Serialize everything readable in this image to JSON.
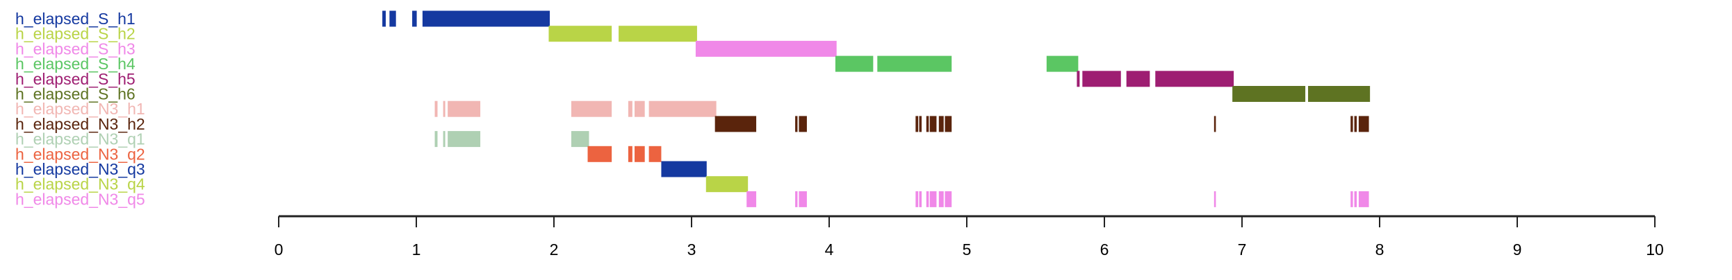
{
  "chart_data": {
    "type": "timeline",
    "title": "",
    "xlabel": "",
    "ylabel": "",
    "xlim": [
      0,
      10
    ],
    "xticks": [
      0,
      1,
      2,
      3,
      4,
      5,
      6,
      7,
      8,
      9,
      10
    ],
    "grid": false,
    "series": [
      {
        "name": "h_elapsed_S_h1",
        "color": "#1539a0",
        "segments": [
          [
            0.753,
            0.778
          ],
          [
            0.805,
            0.852
          ],
          [
            0.97,
            1.003
          ],
          [
            1.045,
            1.97
          ]
        ]
      },
      {
        "name": "h_elapsed_S_h2",
        "color": "#b9d447",
        "segments": [
          [
            1.962,
            2.42
          ],
          [
            2.47,
            3.04
          ]
        ]
      },
      {
        "name": "h_elapsed_S_h3",
        "color": "#f088e8",
        "segments": [
          [
            3.03,
            4.054
          ]
        ]
      },
      {
        "name": "h_elapsed_S_h4",
        "color": "#5bc663",
        "segments": [
          [
            4.045,
            4.32
          ],
          [
            4.35,
            4.89
          ],
          [
            5.58,
            5.81
          ]
        ]
      },
      {
        "name": "h_elapsed_S_h5",
        "color": "#9e1e72",
        "segments": [
          [
            5.8,
            5.82
          ],
          [
            5.84,
            6.12
          ],
          [
            6.16,
            6.33
          ],
          [
            6.37,
            6.94
          ]
        ]
      },
      {
        "name": "h_elapsed_S_h6",
        "color": "#5e7322",
        "segments": [
          [
            6.93,
            7.46
          ],
          [
            7.48,
            7.93
          ]
        ]
      },
      {
        "name": "h_elapsed_N3_h1",
        "color": "#f1b6b3",
        "segments": [
          [
            1.134,
            1.154
          ],
          [
            1.195,
            1.21
          ],
          [
            1.228,
            1.465
          ],
          [
            2.126,
            2.42
          ],
          [
            2.54,
            2.57
          ],
          [
            2.586,
            2.66
          ],
          [
            2.69,
            3.18
          ]
        ]
      },
      {
        "name": "h_elapsed_N3_h2",
        "color": "#5a240c",
        "segments": [
          [
            3.17,
            3.47
          ],
          [
            3.753,
            3.77
          ],
          [
            3.78,
            3.838
          ],
          [
            4.628,
            4.647
          ],
          [
            4.654,
            4.672
          ],
          [
            4.706,
            4.724
          ],
          [
            4.731,
            4.78
          ],
          [
            4.797,
            4.832
          ],
          [
            4.841,
            4.89
          ],
          [
            6.797,
            6.81
          ],
          [
            7.789,
            7.806
          ],
          [
            7.816,
            7.834
          ],
          [
            7.848,
            7.922
          ]
        ]
      },
      {
        "name": "h_elapsed_N3_q1",
        "color": "#afd0b3",
        "segments": [
          [
            1.134,
            1.154
          ],
          [
            1.195,
            1.21
          ],
          [
            1.228,
            1.465
          ],
          [
            2.126,
            2.255
          ]
        ]
      },
      {
        "name": "h_elapsed_N3_q2",
        "color": "#ec6340",
        "segments": [
          [
            2.245,
            2.42
          ],
          [
            2.54,
            2.57
          ],
          [
            2.586,
            2.66
          ],
          [
            2.69,
            2.78
          ]
        ]
      },
      {
        "name": "h_elapsed_N3_q3",
        "color": "#1539a0",
        "segments": [
          [
            2.78,
            3.11
          ]
        ]
      },
      {
        "name": "h_elapsed_N3_q4",
        "color": "#b9d447",
        "segments": [
          [
            3.105,
            3.41
          ]
        ]
      },
      {
        "name": "h_elapsed_N3_q5",
        "color": "#f088e8",
        "segments": [
          [
            3.4,
            3.47
          ],
          [
            3.753,
            3.77
          ],
          [
            3.78,
            3.838
          ],
          [
            4.628,
            4.647
          ],
          [
            4.654,
            4.672
          ],
          [
            4.706,
            4.724
          ],
          [
            4.731,
            4.78
          ],
          [
            4.797,
            4.832
          ],
          [
            4.841,
            4.89
          ],
          [
            6.797,
            6.81
          ],
          [
            7.789,
            7.806
          ],
          [
            7.816,
            7.834
          ],
          [
            7.848,
            7.922
          ]
        ]
      }
    ]
  }
}
